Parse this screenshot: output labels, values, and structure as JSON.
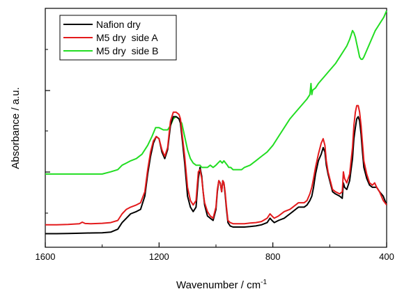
{
  "chart_data": {
    "type": "line",
    "xlabel": "Wavenumber / cm",
    "xlabel_superscript": "-1",
    "ylabel": "Absorbance / a.u.",
    "x_reversed": true,
    "xlim": [
      1600,
      400
    ],
    "ylim": [
      0,
      1
    ],
    "x_ticks": [
      1600,
      1200,
      800,
      400
    ],
    "x_tick_labels": [
      "1600",
      "1200",
      "800",
      "400"
    ],
    "y_tick_labels_shown": false,
    "grid": false,
    "legend_position": "top-left",
    "series": [
      {
        "name": "Nafion dry",
        "color": "#000000",
        "x": [
          1600,
          1560,
          1520,
          1480,
          1440,
          1400,
          1370,
          1345,
          1330,
          1315,
          1300,
          1280,
          1265,
          1250,
          1240,
          1230,
          1220,
          1210,
          1200,
          1190,
          1180,
          1170,
          1160,
          1150,
          1140,
          1130,
          1125,
          1118,
          1110,
          1100,
          1090,
          1080,
          1070,
          1062,
          1056,
          1050,
          1045,
          1040,
          1030,
          1020,
          1010,
          1000,
          995,
          990,
          985,
          980,
          976,
          972,
          968,
          963,
          958,
          950,
          940,
          930,
          920,
          910,
          900,
          880,
          860,
          840,
          820,
          810,
          803,
          795,
          780,
          760,
          740,
          730,
          720,
          710,
          700,
          690,
          680,
          670,
          663,
          657,
          650,
          640,
          630,
          623,
          617,
          612,
          606,
          600,
          590,
          580,
          565,
          556,
          552,
          548,
          540,
          530,
          520,
          515,
          510,
          505,
          500,
          495,
          490,
          485,
          480,
          470,
          460,
          450,
          442,
          435,
          425,
          412,
          400
        ],
        "y": [
          0.03,
          0.03,
          0.031,
          0.032,
          0.033,
          0.034,
          0.037,
          0.05,
          0.08,
          0.1,
          0.12,
          0.13,
          0.14,
          0.2,
          0.3,
          0.38,
          0.44,
          0.47,
          0.46,
          0.4,
          0.37,
          0.41,
          0.52,
          0.56,
          0.56,
          0.55,
          0.53,
          0.45,
          0.35,
          0.2,
          0.15,
          0.13,
          0.15,
          0.28,
          0.33,
          0.29,
          0.22,
          0.16,
          0.11,
          0.1,
          0.09,
          0.14,
          0.22,
          0.27,
          0.26,
          0.22,
          0.27,
          0.26,
          0.21,
          0.14,
          0.08,
          0.065,
          0.06,
          0.06,
          0.06,
          0.06,
          0.06,
          0.062,
          0.065,
          0.07,
          0.08,
          0.1,
          0.09,
          0.08,
          0.09,
          0.1,
          0.12,
          0.13,
          0.14,
          0.15,
          0.15,
          0.15,
          0.16,
          0.18,
          0.2,
          0.24,
          0.3,
          0.36,
          0.39,
          0.42,
          0.4,
          0.34,
          0.3,
          0.27,
          0.22,
          0.21,
          0.2,
          0.19,
          0.26,
          0.24,
          0.23,
          0.27,
          0.37,
          0.46,
          0.51,
          0.55,
          0.56,
          0.54,
          0.48,
          0.4,
          0.33,
          0.28,
          0.25,
          0.24,
          0.24,
          0.24,
          0.22,
          0.2,
          0.16
        ]
      },
      {
        "name": "M5 dry  side A",
        "color": "#e31a1c",
        "x": [
          1600,
          1560,
          1520,
          1480,
          1470,
          1460,
          1440,
          1400,
          1370,
          1345,
          1330,
          1315,
          1300,
          1280,
          1265,
          1250,
          1240,
          1230,
          1220,
          1210,
          1200,
          1190,
          1180,
          1170,
          1160,
          1150,
          1140,
          1130,
          1125,
          1118,
          1110,
          1100,
          1090,
          1080,
          1070,
          1062,
          1056,
          1050,
          1045,
          1040,
          1030,
          1020,
          1010,
          1000,
          995,
          990,
          985,
          980,
          976,
          972,
          968,
          963,
          958,
          950,
          940,
          930,
          920,
          910,
          900,
          880,
          860,
          840,
          820,
          810,
          803,
          795,
          780,
          760,
          740,
          730,
          720,
          710,
          700,
          690,
          680,
          670,
          663,
          657,
          650,
          640,
          630,
          623,
          617,
          612,
          606,
          600,
          590,
          580,
          565,
          556,
          552,
          548,
          540,
          530,
          520,
          515,
          510,
          505,
          500,
          495,
          490,
          485,
          480,
          470,
          460,
          450,
          442,
          435,
          425,
          412,
          400
        ],
        "y": [
          0.07,
          0.07,
          0.072,
          0.075,
          0.082,
          0.076,
          0.075,
          0.077,
          0.08,
          0.09,
          0.12,
          0.14,
          0.15,
          0.16,
          0.17,
          0.22,
          0.32,
          0.4,
          0.45,
          0.47,
          0.46,
          0.41,
          0.38,
          0.42,
          0.54,
          0.58,
          0.58,
          0.57,
          0.55,
          0.47,
          0.38,
          0.24,
          0.18,
          0.16,
          0.18,
          0.31,
          0.32,
          0.28,
          0.22,
          0.17,
          0.13,
          0.11,
          0.1,
          0.15,
          0.23,
          0.27,
          0.26,
          0.22,
          0.27,
          0.26,
          0.22,
          0.15,
          0.09,
          0.08,
          0.075,
          0.075,
          0.075,
          0.075,
          0.075,
          0.078,
          0.08,
          0.085,
          0.1,
          0.12,
          0.11,
          0.1,
          0.11,
          0.13,
          0.14,
          0.15,
          0.16,
          0.17,
          0.17,
          0.17,
          0.18,
          0.21,
          0.24,
          0.28,
          0.33,
          0.39,
          0.44,
          0.46,
          0.43,
          0.36,
          0.31,
          0.28,
          0.23,
          0.22,
          0.21,
          0.22,
          0.31,
          0.28,
          0.26,
          0.3,
          0.42,
          0.52,
          0.58,
          0.61,
          0.61,
          0.58,
          0.52,
          0.44,
          0.36,
          0.3,
          0.26,
          0.25,
          0.26,
          0.24,
          0.22,
          0.18,
          0.16
        ]
      },
      {
        "name": "M5 dry  side B",
        "color": "#22dd22",
        "x": [
          1600,
          1560,
          1520,
          1480,
          1440,
          1400,
          1370,
          1345,
          1330,
          1315,
          1300,
          1280,
          1260,
          1240,
          1225,
          1212,
          1200,
          1185,
          1170,
          1160,
          1150,
          1140,
          1130,
          1120,
          1110,
          1100,
          1090,
          1080,
          1070,
          1062,
          1056,
          1050,
          1045,
          1040,
          1030,
          1020,
          1010,
          1000,
          993,
          985,
          978,
          972,
          966,
          960,
          955,
          948,
          940,
          930,
          920,
          910,
          900,
          880,
          860,
          840,
          820,
          800,
          780,
          760,
          740,
          720,
          700,
          680,
          670,
          666,
          663,
          660,
          650,
          640,
          620,
          600,
          580,
          560,
          540,
          530,
          525,
          520,
          515,
          510,
          505,
          500,
          495,
          490,
          485,
          480,
          470,
          460,
          450,
          440,
          430,
          420,
          410,
          400
        ],
        "y": [
          0.3,
          0.3,
          0.3,
          0.3,
          0.3,
          0.3,
          0.31,
          0.32,
          0.34,
          0.35,
          0.36,
          0.37,
          0.39,
          0.43,
          0.47,
          0.51,
          0.51,
          0.5,
          0.5,
          0.52,
          0.55,
          0.56,
          0.55,
          0.53,
          0.47,
          0.41,
          0.37,
          0.35,
          0.34,
          0.34,
          0.34,
          0.33,
          0.33,
          0.33,
          0.33,
          0.34,
          0.33,
          0.34,
          0.35,
          0.36,
          0.35,
          0.36,
          0.35,
          0.34,
          0.33,
          0.33,
          0.32,
          0.32,
          0.32,
          0.32,
          0.33,
          0.34,
          0.36,
          0.38,
          0.4,
          0.43,
          0.47,
          0.51,
          0.55,
          0.58,
          0.61,
          0.64,
          0.66,
          0.71,
          0.66,
          0.68,
          0.69,
          0.71,
          0.74,
          0.77,
          0.8,
          0.84,
          0.88,
          0.91,
          0.93,
          0.95,
          0.94,
          0.92,
          0.89,
          0.86,
          0.83,
          0.82,
          0.82,
          0.83,
          0.86,
          0.89,
          0.92,
          0.95,
          0.97,
          0.99,
          1.01,
          1.04
        ]
      }
    ]
  }
}
